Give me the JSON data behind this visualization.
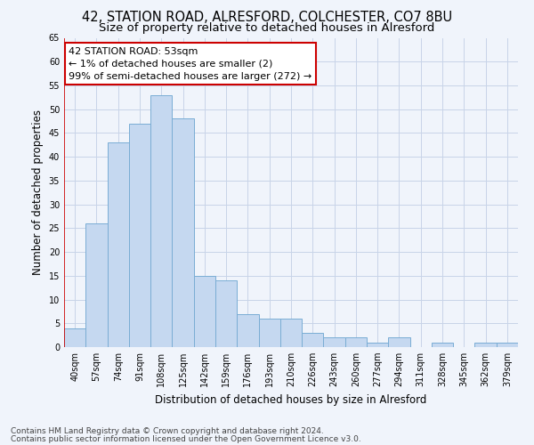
{
  "title1": "42, STATION ROAD, ALRESFORD, COLCHESTER, CO7 8BU",
  "title2": "Size of property relative to detached houses in Alresford",
  "xlabel": "Distribution of detached houses by size in Alresford",
  "ylabel": "Number of detached properties",
  "categories": [
    "40sqm",
    "57sqm",
    "74sqm",
    "91sqm",
    "108sqm",
    "125sqm",
    "142sqm",
    "159sqm",
    "176sqm",
    "193sqm",
    "210sqm",
    "226sqm",
    "243sqm",
    "260sqm",
    "277sqm",
    "294sqm",
    "311sqm",
    "328sqm",
    "345sqm",
    "362sqm",
    "379sqm"
  ],
  "values": [
    4,
    26,
    43,
    47,
    53,
    48,
    15,
    14,
    7,
    6,
    6,
    3,
    2,
    2,
    1,
    2,
    0,
    1,
    0,
    1,
    1
  ],
  "bar_color": "#c5d8f0",
  "bar_edge_color": "#7aadd4",
  "highlight_line_color": "#cc0000",
  "annotation_line1": "42 STATION ROAD: 53sqm",
  "annotation_line2": "← 1% of detached houses are smaller (2)",
  "annotation_line3": "99% of semi-detached houses are larger (272) →",
  "annotation_box_color": "#ffffff",
  "annotation_box_edge": "#cc0000",
  "ylim": [
    0,
    65
  ],
  "yticks": [
    0,
    5,
    10,
    15,
    20,
    25,
    30,
    35,
    40,
    45,
    50,
    55,
    60,
    65
  ],
  "grid_color": "#c8d4e8",
  "footer1": "Contains HM Land Registry data © Crown copyright and database right 2024.",
  "footer2": "Contains public sector information licensed under the Open Government Licence v3.0.",
  "bg_color": "#f0f4fb",
  "title1_fontsize": 10.5,
  "title2_fontsize": 9.5,
  "tick_fontsize": 7,
  "axis_label_fontsize": 8.5,
  "footer_fontsize": 6.5
}
